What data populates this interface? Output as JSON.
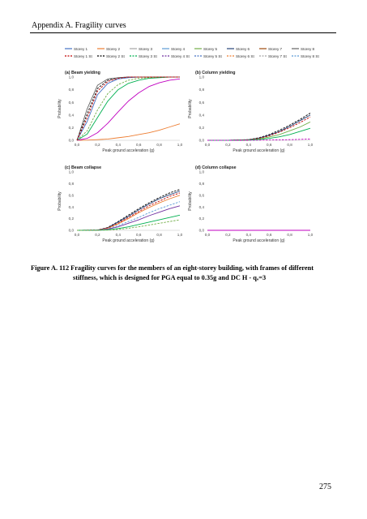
{
  "header": {
    "running_title": "Appendix A. Fragility curves"
  },
  "legend": {
    "items": [
      {
        "label": "Storey 1",
        "color": "#4472c4",
        "dash": false
      },
      {
        "label": "Storey 2",
        "color": "#ed7d31",
        "dash": false
      },
      {
        "label": "Storey 3",
        "color": "#a5a5a5",
        "dash": false
      },
      {
        "label": "Storey 4",
        "color": "#5b9bd5",
        "dash": false
      },
      {
        "label": "Storey 5",
        "color": "#70ad47",
        "dash": false
      },
      {
        "label": "Storey 6",
        "color": "#264478",
        "dash": false
      },
      {
        "label": "Storey 7",
        "color": "#9e480e",
        "dash": false
      },
      {
        "label": "Storey 8",
        "color": "#636363",
        "dash": false
      },
      {
        "label": "Storey 1 St",
        "color": "#c00000",
        "dash": true
      },
      {
        "label": "Storey 2 St",
        "color": "#000000",
        "dash": true
      },
      {
        "label": "Storey 3 St",
        "color": "#00b050",
        "dash": true
      },
      {
        "label": "Storey 4 St",
        "color": "#7030a0",
        "dash": true
      },
      {
        "label": "Storey 5 St",
        "color": "#4472c4",
        "dash": true
      },
      {
        "label": "Storey 6 St",
        "color": "#ed7d31",
        "dash": true
      },
      {
        "label": "Storey 7 St",
        "color": "#a5a5a5",
        "dash": true
      },
      {
        "label": "Storey 8 St",
        "color": "#5b9bd5",
        "dash": true
      }
    ]
  },
  "chart_data": [
    {
      "type": "line",
      "title": "(a) Beam yielding",
      "xlabel": "Peak ground acceleration (g)",
      "ylabel": "Probability",
      "xlim": [
        0,
        1.0
      ],
      "ylim": [
        0,
        1.0
      ],
      "xticks": [
        "0,0",
        "0,2",
        "0,4",
        "0,6",
        "0,8",
        "1,0"
      ],
      "yticks": [
        "0,0",
        "0,2",
        "0,4",
        "0,6",
        "0,8",
        "1,0"
      ],
      "grid": false,
      "series": [
        {
          "color": "#ed7d31",
          "dash": false,
          "x": [
            0,
            0.1,
            0.2,
            0.3,
            0.4,
            0.5,
            0.6,
            0.7,
            0.8,
            0.9,
            1.0
          ],
          "y": [
            0,
            0.003,
            0.01,
            0.02,
            0.04,
            0.06,
            0.09,
            0.12,
            0.16,
            0.21,
            0.26
          ]
        },
        {
          "color": "#c000c0",
          "dash": false,
          "x": [
            0,
            0.1,
            0.2,
            0.3,
            0.4,
            0.5,
            0.6,
            0.7,
            0.8,
            0.9,
            1.0
          ],
          "y": [
            0,
            0.03,
            0.12,
            0.27,
            0.45,
            0.62,
            0.75,
            0.85,
            0.91,
            0.95,
            0.97
          ]
        },
        {
          "color": "#00b050",
          "dash": false,
          "x": [
            0,
            0.1,
            0.2,
            0.3,
            0.4,
            0.5,
            0.6,
            0.7,
            0.8,
            0.9,
            1.0
          ],
          "y": [
            0,
            0.1,
            0.36,
            0.62,
            0.8,
            0.9,
            0.95,
            0.98,
            0.99,
            1.0,
            1.0
          ]
        },
        {
          "color": "#70ad47",
          "dash": true,
          "x": [
            0,
            0.1,
            0.2,
            0.3,
            0.4,
            0.5,
            0.6,
            0.7,
            0.8,
            0.9,
            1.0
          ],
          "y": [
            0,
            0.15,
            0.48,
            0.74,
            0.88,
            0.95,
            0.98,
            0.99,
            1.0,
            1.0,
            1.0
          ]
        },
        {
          "color": "#4472c4",
          "dash": false,
          "x": [
            0,
            0.1,
            0.2,
            0.3,
            0.4,
            0.5,
            0.6,
            0.7,
            0.8,
            0.9,
            1.0
          ],
          "y": [
            0,
            0.3,
            0.72,
            0.9,
            0.97,
            0.99,
            1.0,
            1.0,
            1.0,
            1.0,
            1.0
          ]
        },
        {
          "color": "#000000",
          "dash": true,
          "x": [
            0,
            0.1,
            0.2,
            0.3,
            0.4,
            0.5,
            0.6,
            0.7,
            0.8,
            0.9,
            1.0
          ],
          "y": [
            0,
            0.42,
            0.82,
            0.95,
            0.99,
            1.0,
            1.0,
            1.0,
            1.0,
            1.0,
            1.0
          ]
        },
        {
          "color": "#636363",
          "dash": false,
          "x": [
            0,
            0.1,
            0.2,
            0.3,
            0.4,
            0.5,
            0.6,
            0.7,
            0.8,
            0.9,
            1.0
          ],
          "y": [
            0,
            0.5,
            0.87,
            0.97,
            0.99,
            1.0,
            1.0,
            1.0,
            1.0,
            1.0,
            1.0
          ]
        },
        {
          "color": "#c00000",
          "dash": true,
          "x": [
            0,
            0.1,
            0.2,
            0.3,
            0.4,
            0.5,
            0.6,
            0.7,
            0.8,
            0.9,
            1.0
          ],
          "y": [
            0,
            0.36,
            0.78,
            0.93,
            0.98,
            1.0,
            1.0,
            1.0,
            1.0,
            1.0,
            1.0
          ]
        }
      ]
    },
    {
      "type": "line",
      "title": "(b) Column yielding",
      "xlabel": "Peak ground acceleration (g)",
      "ylabel": "Probability",
      "xlim": [
        0,
        1.0
      ],
      "ylim": [
        0,
        1.0
      ],
      "xticks": [
        "0,0",
        "0,2",
        "0,4",
        "0,6",
        "0,8",
        "1,0"
      ],
      "yticks": [
        "0,0",
        "0,2",
        "0,4",
        "0,6",
        "0,8",
        "1,0"
      ],
      "grid": false,
      "series": [
        {
          "color": "#000000",
          "dash": true,
          "x": [
            0,
            0.2,
            0.4,
            0.5,
            0.6,
            0.7,
            0.8,
            0.9,
            1.0
          ],
          "y": [
            0,
            0,
            0.01,
            0.04,
            0.09,
            0.16,
            0.24,
            0.33,
            0.43
          ]
        },
        {
          "color": "#264478",
          "dash": false,
          "x": [
            0,
            0.2,
            0.4,
            0.5,
            0.6,
            0.7,
            0.8,
            0.9,
            1.0
          ],
          "y": [
            0,
            0,
            0.01,
            0.035,
            0.08,
            0.14,
            0.22,
            0.31,
            0.4
          ]
        },
        {
          "color": "#c00000",
          "dash": true,
          "x": [
            0,
            0.2,
            0.4,
            0.5,
            0.6,
            0.7,
            0.8,
            0.9,
            1.0
          ],
          "y": [
            0,
            0,
            0.008,
            0.03,
            0.07,
            0.13,
            0.2,
            0.28,
            0.37
          ]
        },
        {
          "color": "#70ad47",
          "dash": false,
          "x": [
            0,
            0.2,
            0.4,
            0.5,
            0.6,
            0.7,
            0.8,
            0.9,
            1.0
          ],
          "y": [
            0,
            0,
            0.005,
            0.02,
            0.05,
            0.09,
            0.15,
            0.21,
            0.29
          ]
        },
        {
          "color": "#00b050",
          "dash": false,
          "x": [
            0,
            0.2,
            0.4,
            0.5,
            0.6,
            0.7,
            0.8,
            0.9,
            1.0
          ],
          "y": [
            0,
            0,
            0.003,
            0.012,
            0.03,
            0.055,
            0.09,
            0.14,
            0.19
          ]
        },
        {
          "color": "#c000c0",
          "dash": true,
          "x": [
            0,
            0.2,
            0.4,
            0.6,
            0.8,
            1.0
          ],
          "y": [
            0,
            0,
            0,
            0.005,
            0.01,
            0.02
          ]
        }
      ]
    },
    {
      "type": "line",
      "title": "(c) Beam collapse",
      "xlabel": "Peak ground acceleration (g)",
      "ylabel": "Probability",
      "xlim": [
        0,
        1.0
      ],
      "ylim": [
        0,
        1.0
      ],
      "xticks": [
        "0,0",
        "0,2",
        "0,4",
        "0,6",
        "0,8",
        "1,0"
      ],
      "yticks": [
        "0,0",
        "0,2",
        "0,4",
        "0,6",
        "0,8",
        "1,0"
      ],
      "grid": false,
      "series": [
        {
          "color": "#000000",
          "dash": true,
          "x": [
            0,
            0.2,
            0.3,
            0.4,
            0.5,
            0.6,
            0.7,
            0.8,
            0.9,
            1.0
          ],
          "y": [
            0,
            0.005,
            0.05,
            0.15,
            0.26,
            0.37,
            0.47,
            0.56,
            0.64,
            0.7
          ]
        },
        {
          "color": "#264478",
          "dash": false,
          "x": [
            0,
            0.2,
            0.3,
            0.4,
            0.5,
            0.6,
            0.7,
            0.8,
            0.9,
            1.0
          ],
          "y": [
            0,
            0.004,
            0.045,
            0.14,
            0.24,
            0.35,
            0.45,
            0.54,
            0.61,
            0.67
          ]
        },
        {
          "color": "#c00000",
          "dash": true,
          "x": [
            0,
            0.2,
            0.3,
            0.4,
            0.5,
            0.6,
            0.7,
            0.8,
            0.9,
            1.0
          ],
          "y": [
            0,
            0.003,
            0.04,
            0.12,
            0.22,
            0.32,
            0.42,
            0.5,
            0.58,
            0.64
          ]
        },
        {
          "color": "#ed7d31",
          "dash": false,
          "x": [
            0,
            0.2,
            0.3,
            0.4,
            0.5,
            0.6,
            0.7,
            0.8,
            0.9,
            1.0
          ],
          "y": [
            0,
            0.003,
            0.035,
            0.11,
            0.2,
            0.3,
            0.39,
            0.47,
            0.54,
            0.6
          ]
        },
        {
          "color": "#5b9bd5",
          "dash": true,
          "x": [
            0,
            0.2,
            0.3,
            0.4,
            0.5,
            0.6,
            0.7,
            0.8,
            0.9,
            1.0
          ],
          "y": [
            0,
            0.002,
            0.025,
            0.08,
            0.15,
            0.22,
            0.3,
            0.37,
            0.43,
            0.49
          ]
        },
        {
          "color": "#7030a0",
          "dash": false,
          "x": [
            0,
            0.2,
            0.3,
            0.4,
            0.5,
            0.6,
            0.7,
            0.8,
            0.9,
            1.0
          ],
          "y": [
            0,
            0.002,
            0.02,
            0.06,
            0.12,
            0.18,
            0.25,
            0.31,
            0.37,
            0.42
          ]
        },
        {
          "color": "#00b050",
          "dash": false,
          "x": [
            0,
            0.2,
            0.3,
            0.4,
            0.5,
            0.6,
            0.7,
            0.8,
            0.9,
            1.0
          ],
          "y": [
            0,
            0.001,
            0.01,
            0.03,
            0.06,
            0.1,
            0.14,
            0.18,
            0.22,
            0.26
          ]
        },
        {
          "color": "#70ad47",
          "dash": true,
          "x": [
            0,
            0.2,
            0.3,
            0.4,
            0.5,
            0.6,
            0.7,
            0.8,
            0.9,
            1.0
          ],
          "y": [
            0,
            0,
            0.005,
            0.015,
            0.035,
            0.06,
            0.09,
            0.12,
            0.15,
            0.18
          ]
        }
      ]
    },
    {
      "type": "line",
      "title": "(d) Column collapse",
      "xlabel": "Peak ground acceleration (g)",
      "ylabel": "Probability",
      "xlim": [
        0,
        1.0
      ],
      "ylim": [
        0,
        1.0
      ],
      "xticks": [
        "0,0",
        "0,2",
        "0,4",
        "0,6",
        "0,8",
        "1,0"
      ],
      "yticks": [
        "0,0",
        "0,2",
        "0,4",
        "0,6",
        "0,8",
        "1,0"
      ],
      "grid": false,
      "series": [
        {
          "color": "#c000c0",
          "dash": false,
          "x": [
            0,
            1.0
          ],
          "y": [
            0,
            0
          ]
        }
      ]
    }
  ],
  "caption": {
    "line1": "Figure A. 112 Fragility curves for the members of an eight-storey building, with frames of different",
    "line2": "stiffness, which is designed for PGA equal to 0.35g and DC H - qₒ=3"
  },
  "footer": {
    "page_number": "275"
  }
}
